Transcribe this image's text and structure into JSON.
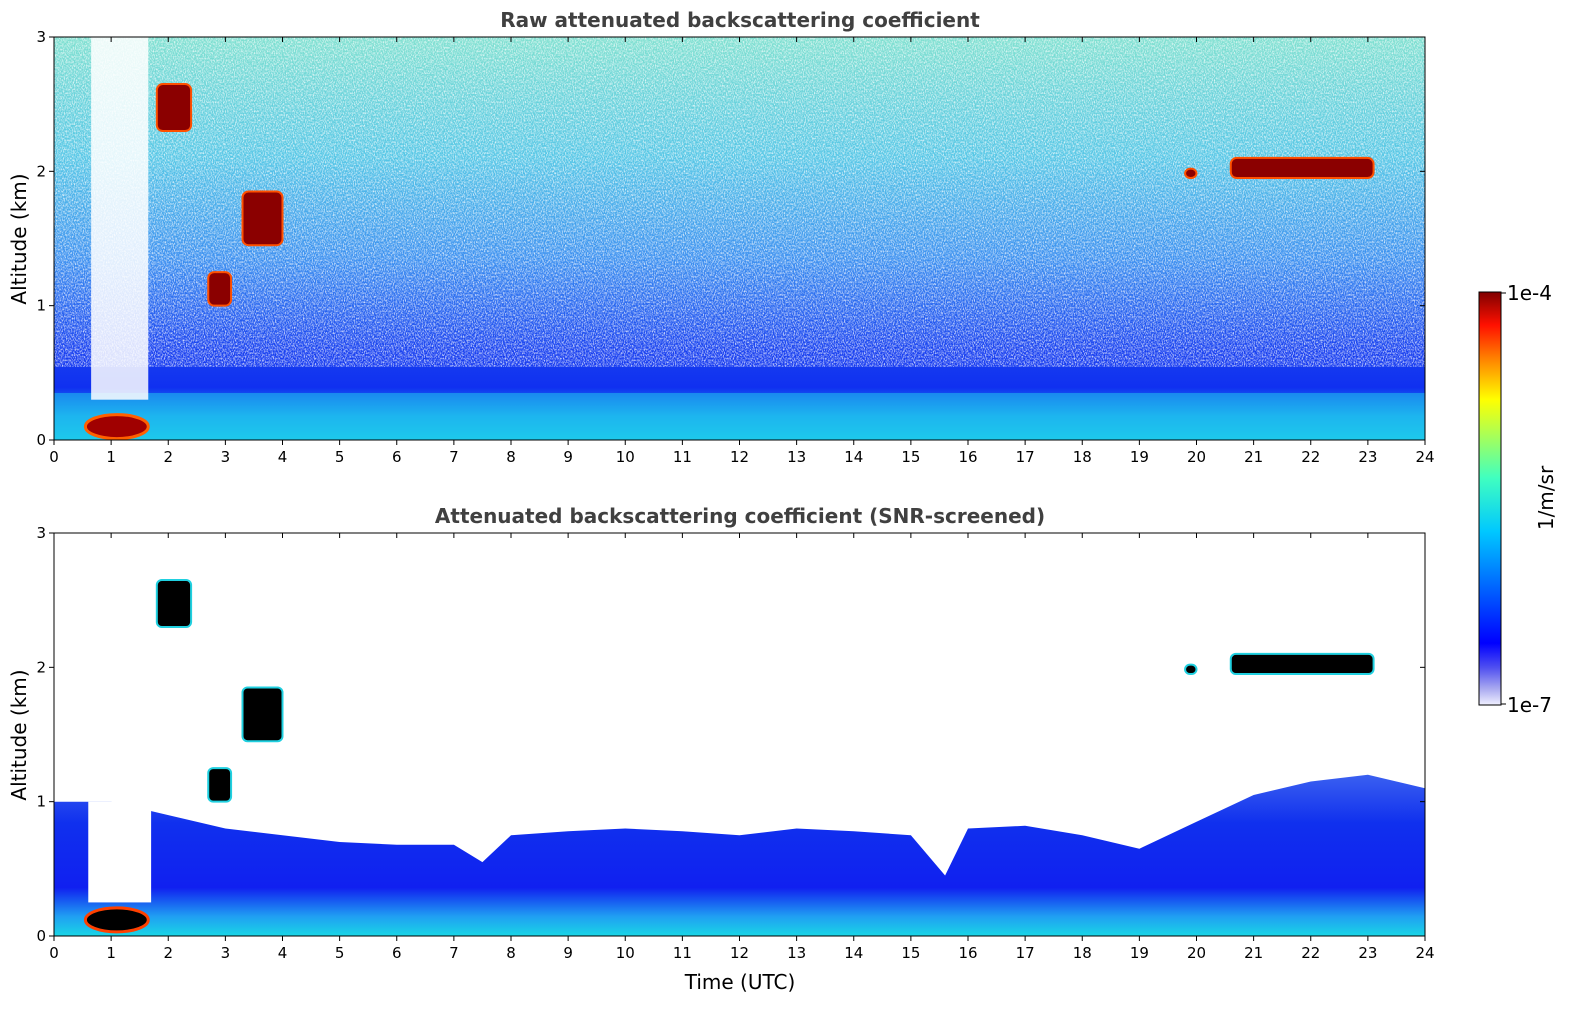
{
  "chart_data": [
    {
      "type": "heatmap",
      "title": "Raw attenuated backscattering coefficient",
      "xlabel": "",
      "ylabel": "Altitude (km)",
      "xlim": [
        0,
        24
      ],
      "ylim": [
        0,
        3
      ],
      "xticks": [
        "0",
        "1",
        "2",
        "3",
        "4",
        "5",
        "6",
        "7",
        "8",
        "9",
        "10",
        "11",
        "12",
        "13",
        "14",
        "15",
        "16",
        "17",
        "18",
        "19",
        "20",
        "21",
        "22",
        "23",
        "24"
      ],
      "yticks": [
        "0",
        "1",
        "2",
        "3"
      ],
      "features": [
        {
          "kind": "boundary_layer_base",
          "altitude_km": [
            0.0,
            0.35
          ]
        },
        {
          "kind": "cloud",
          "time_utc": [
            1.8,
            2.4
          ],
          "altitude_km": [
            2.3,
            2.65
          ]
        },
        {
          "kind": "cloud",
          "time_utc": [
            3.3,
            4.0
          ],
          "altitude_km": [
            1.45,
            1.85
          ]
        },
        {
          "kind": "cloud",
          "time_utc": [
            2.7,
            3.1
          ],
          "altitude_km": [
            1.0,
            1.25
          ]
        },
        {
          "kind": "cloud",
          "time_utc": [
            20.6,
            23.1
          ],
          "altitude_km": [
            1.95,
            2.1
          ]
        },
        {
          "kind": "cloud",
          "time_utc": [
            19.8,
            20.0
          ],
          "altitude_km": [
            1.95,
            2.02
          ]
        }
      ]
    },
    {
      "type": "heatmap",
      "title": "Attenuated backscattering coefficient (SNR-screened)",
      "xlabel": "Time (UTC)",
      "ylabel": "Altitude (km)",
      "xlim": [
        0,
        24
      ],
      "ylim": [
        0,
        3
      ],
      "xticks": [
        "0",
        "1",
        "2",
        "3",
        "4",
        "5",
        "6",
        "7",
        "8",
        "9",
        "10",
        "11",
        "12",
        "13",
        "14",
        "15",
        "16",
        "17",
        "18",
        "19",
        "20",
        "21",
        "22",
        "23",
        "24"
      ],
      "yticks": [
        "0",
        "1",
        "2",
        "3"
      ],
      "boundary_layer_top_km": [
        [
          0,
          1.0
        ],
        [
          1,
          1.0
        ],
        [
          2,
          0.9
        ],
        [
          3,
          0.8
        ],
        [
          4,
          0.75
        ],
        [
          5,
          0.7
        ],
        [
          6,
          0.68
        ],
        [
          7,
          0.68
        ],
        [
          7.5,
          0.55
        ],
        [
          8,
          0.75
        ],
        [
          9,
          0.78
        ],
        [
          10,
          0.8
        ],
        [
          11,
          0.78
        ],
        [
          12,
          0.75
        ],
        [
          13,
          0.8
        ],
        [
          14,
          0.78
        ],
        [
          15,
          0.75
        ],
        [
          15.6,
          0.45
        ],
        [
          16,
          0.8
        ],
        [
          17,
          0.82
        ],
        [
          18,
          0.75
        ],
        [
          19,
          0.65
        ],
        [
          20,
          0.85
        ],
        [
          21,
          1.05
        ],
        [
          22,
          1.15
        ],
        [
          23,
          1.2
        ],
        [
          24,
          1.1
        ]
      ]
    }
  ],
  "colorbar": {
    "label": "1/m/sr",
    "max_label": "1e-4",
    "min_label": "1e-7",
    "scale": "log",
    "colormap": "jet"
  }
}
